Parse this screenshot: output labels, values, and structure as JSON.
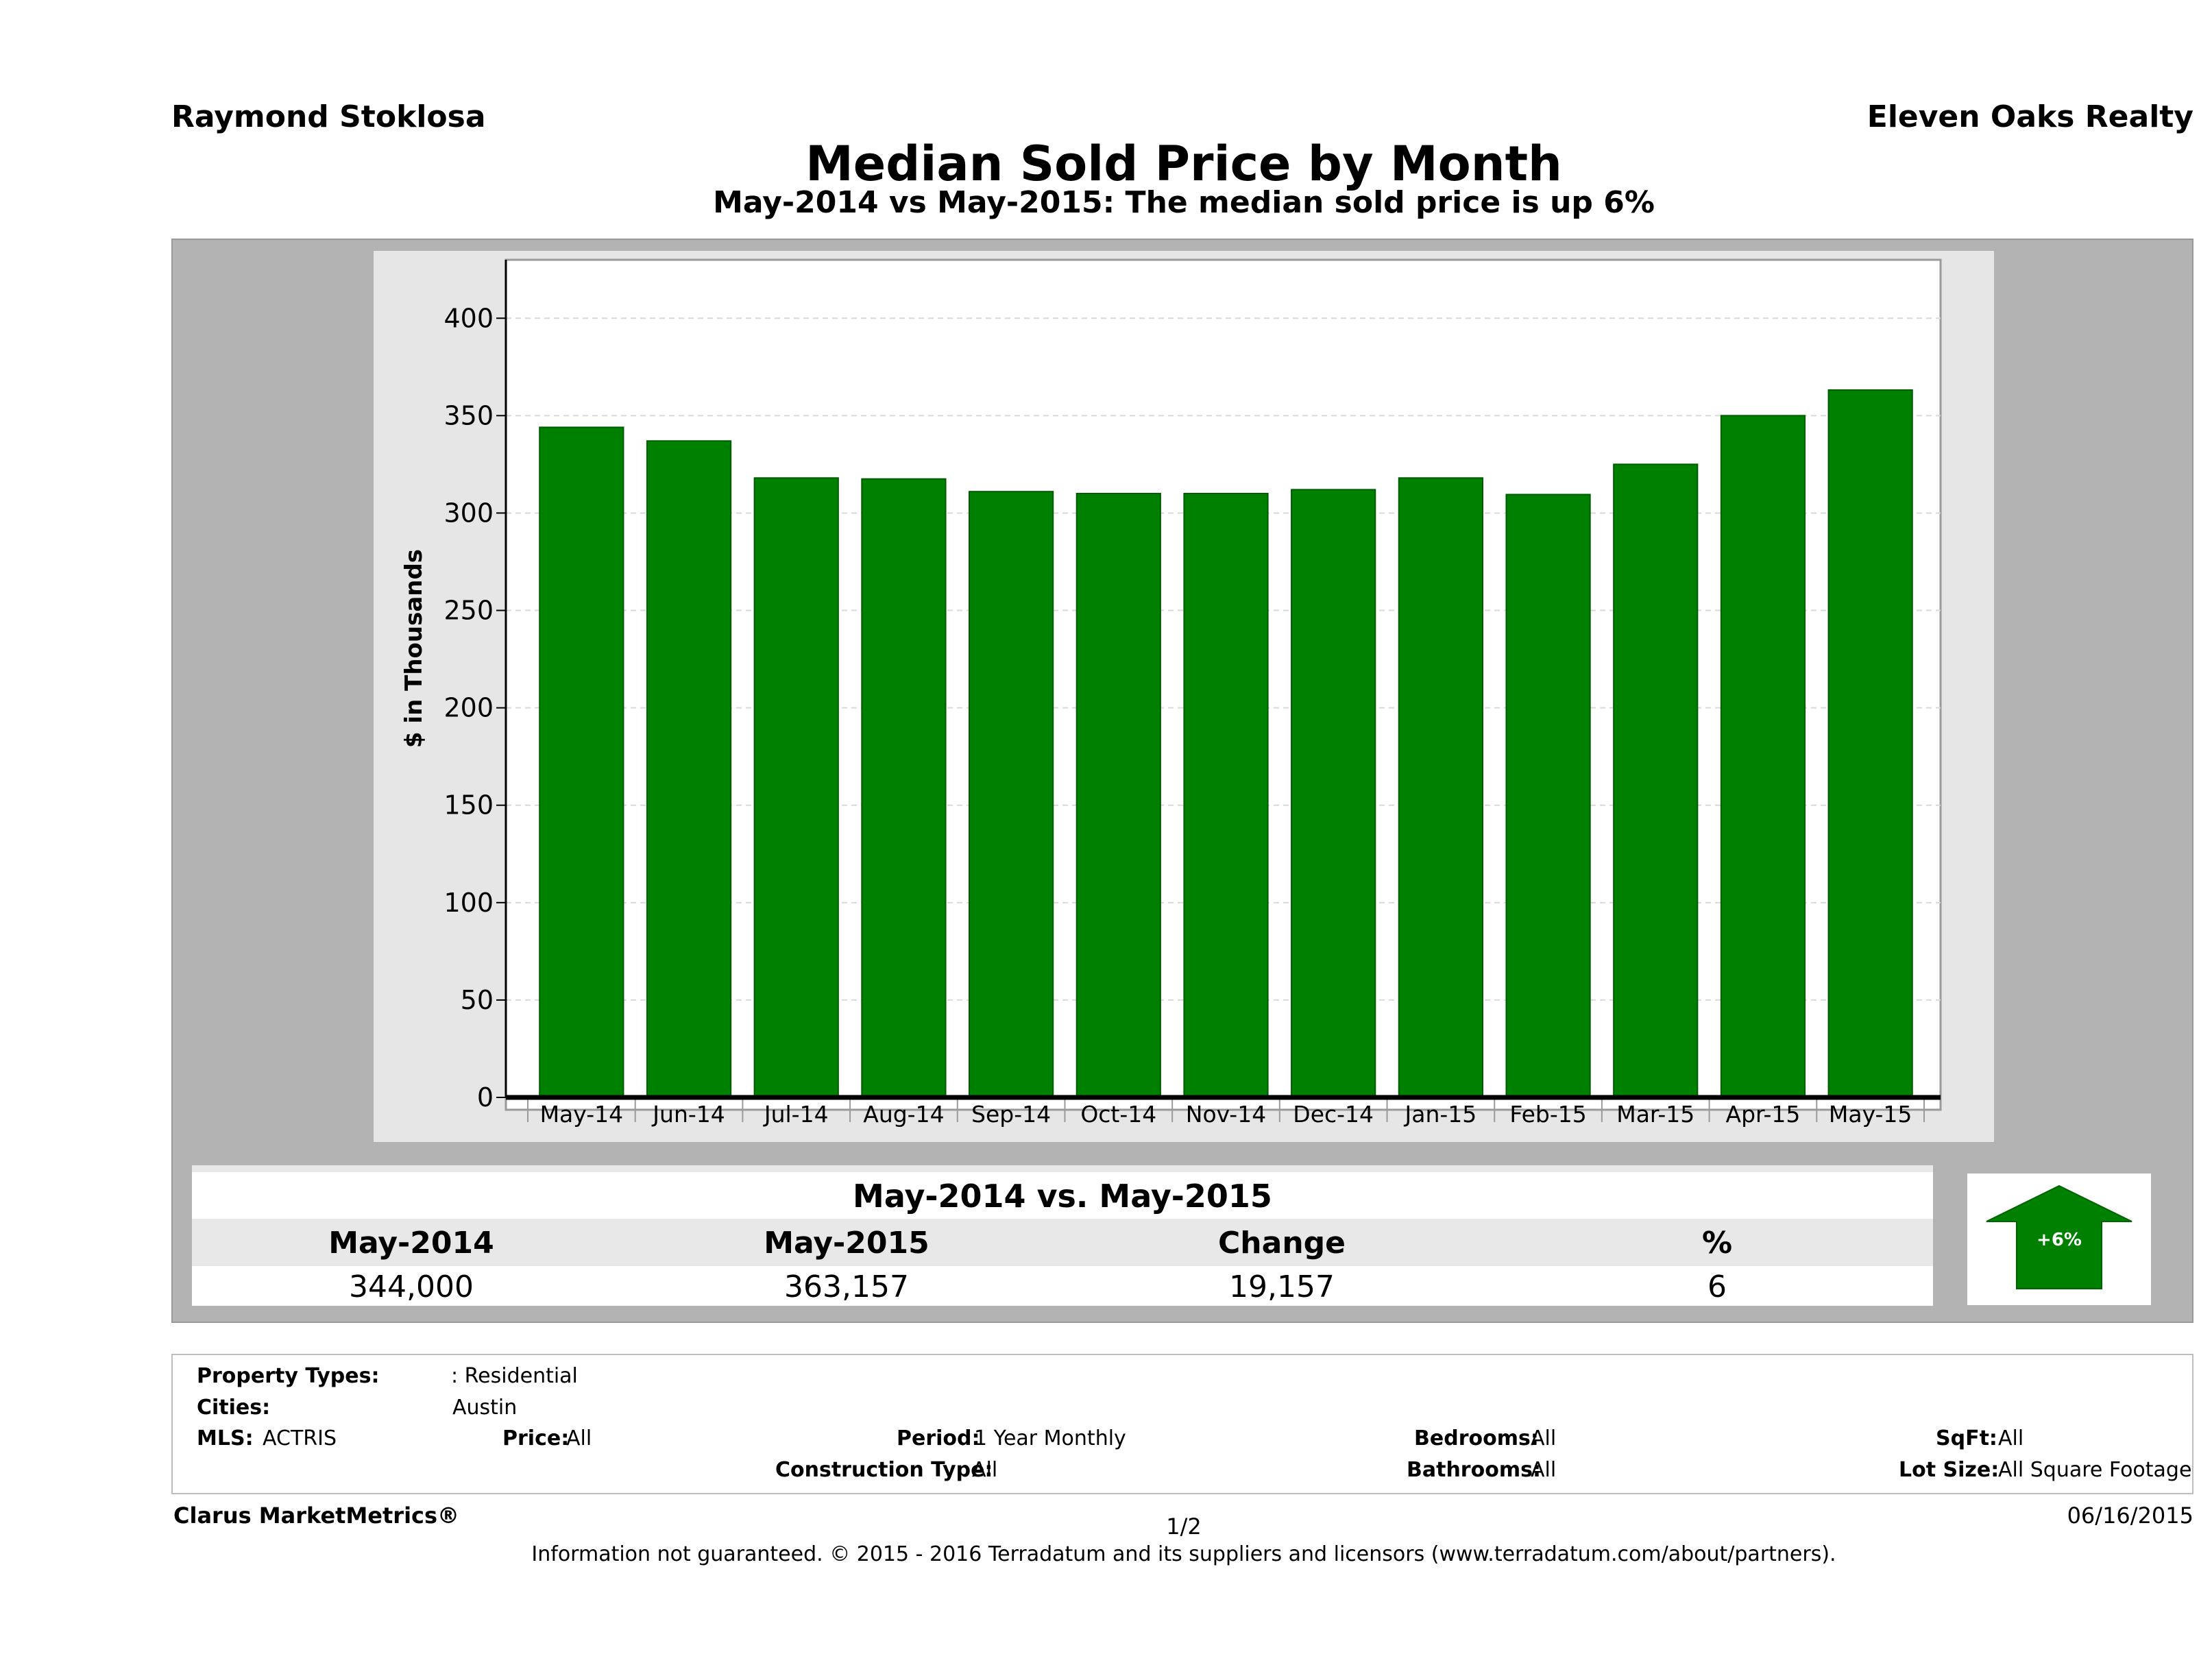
{
  "header": {
    "agent": "Raymond Stoklosa",
    "company": "Eleven Oaks Realty",
    "title": "Median Sold Price by Month",
    "subtitle": "May-2014 vs May-2015: The median sold price is up 6%"
  },
  "chart_data": {
    "type": "bar",
    "ylabel": "$ in Thousands",
    "ylim": [
      0,
      430
    ],
    "yticks": [
      0,
      50,
      100,
      150,
      200,
      250,
      300,
      350,
      400
    ],
    "grid": true,
    "categories": [
      "May-14",
      "Jun-14",
      "Jul-14",
      "Aug-14",
      "Sep-14",
      "Oct-14",
      "Nov-14",
      "Dec-14",
      "Jan-15",
      "Feb-15",
      "Mar-15",
      "Apr-15",
      "May-15"
    ],
    "values": [
      344,
      337,
      318,
      317.5,
      311,
      310,
      310,
      312,
      318,
      309.5,
      325,
      350,
      363.157
    ],
    "bar_color": "#008000"
  },
  "comparison": {
    "heading": "May-2014 vs. May-2015",
    "col1_label": "May-2014",
    "col2_label": "May-2015",
    "col3_label": "Change",
    "col4_label": "%",
    "col1_value": "344,000",
    "col2_value": "363,157",
    "col3_value": "19,157",
    "col4_value": "6",
    "badge": "+6%",
    "badge_color": "#008000"
  },
  "filters": {
    "property_types_label": "Property Types:",
    "property_types_value": ": Residential",
    "cities_label": "Cities:",
    "cities_value": "Austin",
    "mls_label": "MLS:",
    "mls_value": "ACTRIS",
    "price_label": "Price:",
    "price_value": "All",
    "period_label": "Period:",
    "period_value": "1 Year Monthly",
    "bedrooms_label": "Bedrooms:",
    "bedrooms_value": "All",
    "sqft_label": "SqFt:",
    "sqft_value": "All",
    "construction_label": "Construction Type:",
    "construction_value": "All",
    "bathrooms_label": "Bathrooms:",
    "bathrooms_value": "All",
    "lot_label": "Lot Size:",
    "lot_value": "All Square Footage"
  },
  "footer": {
    "brand": "Clarus MarketMetrics®",
    "page": "1/2",
    "date": "06/16/2015",
    "disclaimer": "Information not guaranteed. © 2015 - 2016 Terradatum and its suppliers and licensors (www.terradatum.com/about/partners)."
  }
}
